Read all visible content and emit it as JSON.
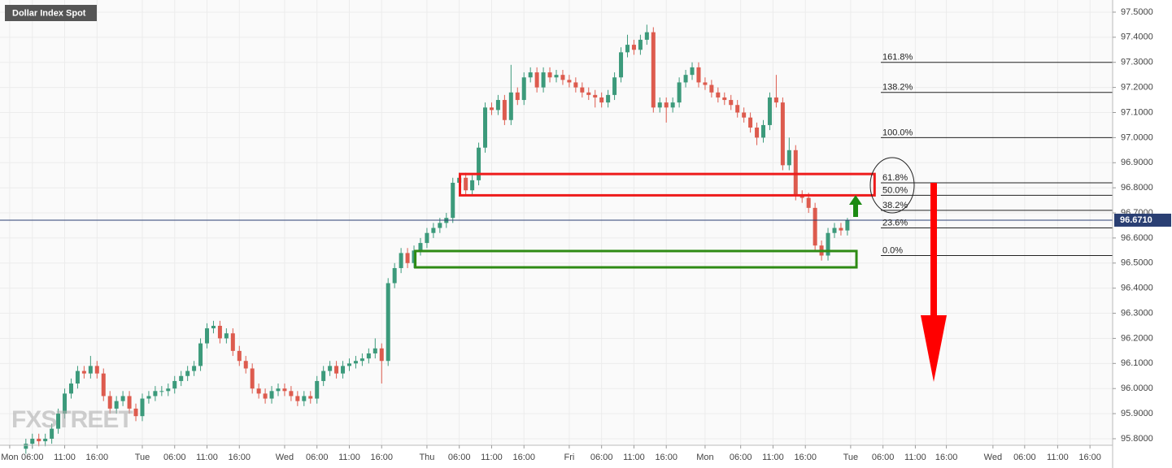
{
  "chart_data": {
    "type": "candlestick",
    "title": "Dollar Index Spot",
    "watermark": "FXSTREET",
    "bull_color": "#3c9a7b",
    "bear_color": "#dd5b4e",
    "grid": true,
    "xlim": [
      0,
      172
    ],
    "ylim": [
      95.774,
      97.529
    ],
    "yticks": [
      {
        "value": 95.8,
        "label": "95.8000"
      },
      {
        "value": 95.9,
        "label": "95.9000"
      },
      {
        "value": 96.0,
        "label": "96.0000"
      },
      {
        "value": 96.1,
        "label": "96.1000"
      },
      {
        "value": 96.2,
        "label": "96.2000"
      },
      {
        "value": 96.3,
        "label": "96.3000"
      },
      {
        "value": 96.4,
        "label": "96.4000"
      },
      {
        "value": 96.5,
        "label": "96.5000"
      },
      {
        "value": 96.6,
        "label": "96.6000"
      },
      {
        "value": 96.7,
        "label": "96.7000"
      },
      {
        "value": 96.8,
        "label": "96.8000"
      },
      {
        "value": 96.9,
        "label": "96.9000"
      },
      {
        "value": 97.0,
        "label": "97.0000"
      },
      {
        "value": 97.1,
        "label": "97.1000"
      },
      {
        "value": 97.2,
        "label": "97.2000"
      },
      {
        "value": 97.3,
        "label": "97.3000"
      },
      {
        "value": 97.4,
        "label": "97.4000"
      },
      {
        "value": 97.5,
        "label": "97.5000"
      }
    ],
    "xticks": [
      {
        "value": 1.5,
        "label": "Mon"
      },
      {
        "value": 5,
        "label": "06:00"
      },
      {
        "value": 10,
        "label": "11:00"
      },
      {
        "value": 15,
        "label": "16:00"
      },
      {
        "value": 22,
        "label": "Tue"
      },
      {
        "value": 27,
        "label": "06:00"
      },
      {
        "value": 32,
        "label": "11:00"
      },
      {
        "value": 37,
        "label": "16:00"
      },
      {
        "value": 44,
        "label": "Wed"
      },
      {
        "value": 49,
        "label": "06:00"
      },
      {
        "value": 54,
        "label": "11:00"
      },
      {
        "value": 59,
        "label": "16:00"
      },
      {
        "value": 66,
        "label": "Thu"
      },
      {
        "value": 71,
        "label": "06:00"
      },
      {
        "value": 76,
        "label": "11:00"
      },
      {
        "value": 81,
        "label": "16:00"
      },
      {
        "value": 88,
        "label": "Fri"
      },
      {
        "value": 93,
        "label": "06:00"
      },
      {
        "value": 98,
        "label": "11:00"
      },
      {
        "value": 103,
        "label": "16:00"
      },
      {
        "value": 109,
        "label": "Mon"
      },
      {
        "value": 114.5,
        "label": "06:00"
      },
      {
        "value": 119.5,
        "label": "11:00"
      },
      {
        "value": 124.5,
        "label": "16:00"
      },
      {
        "value": 131.5,
        "label": "Tue"
      },
      {
        "value": 136.5,
        "label": "06:00"
      },
      {
        "value": 141.5,
        "label": "11:00"
      },
      {
        "value": 146.3,
        "label": "16:00"
      },
      {
        "value": 153.5,
        "label": "Wed"
      },
      {
        "value": 158.4,
        "label": "06:00"
      },
      {
        "value": 163.5,
        "label": "11:00"
      },
      {
        "value": 168.5,
        "label": "16:00"
      }
    ],
    "x": [
      4,
      5,
      6,
      7,
      8,
      9,
      10,
      11,
      12,
      13,
      14,
      15,
      16,
      17,
      18,
      19,
      20,
      21,
      22,
      23,
      24,
      25,
      26,
      27,
      28,
      29,
      30,
      31,
      32,
      33,
      34,
      35,
      36,
      37,
      38,
      39,
      40,
      41,
      42,
      43,
      44,
      45,
      46,
      47,
      48,
      49,
      50,
      51,
      52,
      53,
      54,
      55,
      56,
      57,
      58,
      59,
      60,
      61,
      62,
      63,
      64,
      65,
      66,
      67,
      68,
      69,
      70,
      71,
      72,
      73,
      74,
      75,
      76,
      77,
      78,
      79,
      80,
      81,
      82,
      83,
      84,
      85,
      86,
      87,
      88,
      89,
      90,
      91,
      92,
      93,
      94,
      95,
      96,
      97,
      98,
      99,
      100,
      101,
      102,
      103,
      104,
      105,
      106,
      107,
      108,
      109,
      110,
      111,
      112,
      113,
      114,
      115,
      116,
      117,
      118,
      119,
      120,
      121,
      122,
      123,
      124,
      125,
      126,
      127,
      128,
      129,
      130,
      131
    ],
    "open": [
      95.76,
      95.78,
      95.8,
      95.79,
      95.8,
      95.84,
      95.9,
      95.98,
      96.02,
      96.07,
      96.06,
      96.09,
      96.06,
      95.97,
      95.92,
      95.95,
      95.97,
      95.92,
      95.89,
      95.96,
      95.97,
      95.99,
      95.99,
      96.0,
      96.03,
      96.05,
      96.07,
      96.09,
      96.18,
      96.24,
      96.25,
      96.2,
      96.22,
      96.15,
      96.11,
      96.08,
      96.0,
      95.98,
      95.96,
      95.99,
      96.0,
      95.99,
      95.97,
      95.95,
      95.97,
      95.96,
      96.03,
      96.07,
      96.09,
      96.06,
      96.09,
      96.1,
      96.11,
      96.12,
      96.14,
      96.16,
      96.11,
      96.42,
      96.48,
      96.54,
      96.5,
      96.55,
      96.58,
      96.62,
      96.64,
      96.66,
      96.68,
      96.82,
      96.84,
      96.79,
      96.83,
      96.96,
      97.12,
      97.11,
      97.15,
      97.07,
      97.18,
      97.15,
      97.24,
      97.26,
      97.2,
      97.26,
      97.24,
      97.25,
      97.23,
      97.22,
      97.2,
      97.18,
      97.17,
      97.16,
      97.14,
      97.17,
      97.24,
      97.34,
      97.37,
      97.35,
      97.39,
      97.42,
      97.12,
      97.14,
      97.12,
      97.14,
      97.22,
      97.25,
      97.28,
      97.22,
      97.21,
      97.18,
      97.16,
      97.15,
      97.13,
      97.1,
      97.08,
      97.04,
      97.0,
      97.05,
      97.16,
      97.14,
      96.89,
      96.95,
      96.77,
      96.76,
      96.72,
      96.57,
      96.53,
      96.62,
      96.64,
      96.63
    ],
    "high": [
      95.8,
      95.82,
      95.82,
      95.82,
      95.86,
      95.92,
      96.0,
      96.04,
      96.09,
      96.09,
      96.13,
      96.11,
      96.08,
      95.99,
      95.97,
      95.99,
      95.99,
      95.94,
      95.98,
      95.99,
      96.01,
      96.01,
      96.02,
      96.05,
      96.07,
      96.09,
      96.11,
      96.2,
      96.26,
      96.27,
      96.27,
      96.24,
      96.24,
      96.17,
      96.13,
      96.1,
      96.02,
      96.0,
      96.01,
      96.02,
      96.02,
      96.01,
      95.99,
      95.99,
      95.99,
      96.05,
      96.09,
      96.11,
      96.11,
      96.11,
      96.12,
      96.13,
      96.14,
      96.16,
      96.2,
      96.18,
      96.44,
      96.5,
      96.56,
      96.56,
      96.57,
      96.6,
      96.64,
      96.66,
      96.68,
      96.7,
      96.84,
      96.86,
      96.86,
      96.85,
      96.98,
      97.14,
      97.14,
      97.17,
      97.17,
      97.29,
      97.2,
      97.26,
      97.28,
      97.28,
      97.28,
      97.28,
      97.27,
      97.27,
      97.25,
      97.24,
      97.22,
      97.2,
      97.19,
      97.18,
      97.19,
      97.26,
      97.36,
      97.41,
      97.39,
      97.41,
      97.45,
      97.44,
      97.16,
      97.16,
      97.16,
      97.24,
      97.27,
      97.3,
      97.3,
      97.24,
      97.23,
      97.2,
      97.18,
      97.17,
      97.15,
      97.12,
      97.1,
      97.06,
      97.07,
      97.18,
      97.25,
      97.16,
      97.0,
      96.97,
      96.79,
      96.78,
      96.74,
      96.59,
      96.64,
      96.66,
      96.66,
      96.68
    ],
    "low": [
      95.74,
      95.76,
      95.77,
      95.77,
      95.78,
      95.82,
      95.88,
      95.96,
      96.0,
      96.04,
      96.04,
      96.04,
      95.95,
      95.9,
      95.9,
      95.93,
      95.9,
      95.87,
      95.87,
      95.94,
      95.95,
      95.97,
      95.97,
      95.98,
      96.01,
      96.03,
      96.05,
      96.07,
      96.16,
      96.22,
      96.18,
      96.18,
      96.13,
      96.09,
      96.06,
      95.98,
      95.96,
      95.94,
      95.94,
      95.97,
      95.97,
      95.95,
      95.93,
      95.93,
      95.94,
      95.94,
      96.01,
      96.05,
      96.04,
      96.04,
      96.07,
      96.08,
      96.09,
      96.1,
      96.12,
      96.02,
      96.09,
      96.4,
      96.46,
      96.48,
      96.48,
      96.53,
      96.56,
      96.6,
      96.62,
      96.64,
      96.66,
      96.77,
      96.77,
      96.77,
      96.81,
      96.94,
      97.09,
      97.09,
      97.05,
      97.05,
      97.13,
      97.13,
      97.22,
      97.18,
      97.18,
      97.22,
      97.22,
      97.21,
      97.2,
      97.18,
      97.16,
      97.15,
      97.12,
      97.12,
      97.12,
      97.15,
      97.22,
      97.32,
      97.33,
      97.33,
      97.37,
      97.1,
      97.1,
      97.06,
      97.1,
      97.12,
      97.2,
      97.23,
      97.2,
      97.19,
      97.16,
      97.14,
      97.13,
      97.11,
      97.08,
      97.06,
      97.02,
      96.97,
      96.98,
      97.03,
      97.12,
      96.87,
      96.87,
      96.75,
      96.74,
      96.7,
      96.55,
      96.51,
      96.51,
      96.6,
      96.61,
      96.61
    ],
    "close": [
      95.78,
      95.8,
      95.79,
      95.8,
      95.84,
      95.9,
      95.98,
      96.02,
      96.07,
      96.06,
      96.09,
      96.06,
      95.97,
      95.92,
      95.95,
      95.97,
      95.92,
      95.89,
      95.96,
      95.97,
      95.99,
      95.99,
      96.0,
      96.03,
      96.05,
      96.07,
      96.09,
      96.18,
      96.24,
      96.25,
      96.2,
      96.22,
      96.15,
      96.11,
      96.08,
      96.0,
      95.98,
      95.96,
      95.99,
      96.0,
      95.99,
      95.97,
      95.95,
      95.97,
      95.96,
      96.03,
      96.07,
      96.09,
      96.06,
      96.09,
      96.1,
      96.11,
      96.12,
      96.14,
      96.16,
      96.11,
      96.42,
      96.48,
      96.54,
      96.5,
      96.55,
      96.58,
      96.62,
      96.64,
      96.66,
      96.68,
      96.82,
      96.84,
      96.79,
      96.83,
      96.96,
      97.12,
      97.11,
      97.15,
      97.07,
      97.18,
      97.15,
      97.24,
      97.26,
      97.2,
      97.26,
      97.24,
      97.25,
      97.23,
      97.22,
      97.2,
      97.18,
      97.17,
      97.16,
      97.14,
      97.17,
      97.24,
      97.34,
      97.37,
      97.35,
      97.39,
      97.42,
      97.12,
      97.14,
      97.12,
      97.14,
      97.22,
      97.25,
      97.28,
      97.22,
      97.21,
      97.18,
      97.16,
      97.15,
      97.13,
      97.1,
      97.08,
      97.04,
      97.0,
      97.05,
      97.16,
      97.14,
      96.89,
      96.95,
      96.77,
      96.76,
      96.72,
      96.57,
      96.53,
      96.62,
      96.64,
      96.63,
      96.67
    ],
    "last_price": {
      "value": 96.671,
      "label": "96.6710"
    },
    "fib_levels": [
      {
        "label": "161.8%",
        "price": 97.3
      },
      {
        "label": "138.2%",
        "price": 97.18
      },
      {
        "label": "100.0%",
        "price": 97.0
      },
      {
        "label": "61.8%",
        "price": 96.82
      },
      {
        "label": "50.0%",
        "price": 96.77
      },
      {
        "label": "38.2%",
        "price": 96.71
      },
      {
        "label": "23.6%",
        "price": 96.64
      },
      {
        "label": "0.0%",
        "price": 96.53
      }
    ],
    "zones": [
      {
        "color": "#ee1c1c",
        "x0": 71.1,
        "x1": 135.2,
        "top": 96.855,
        "bottom": 96.77
      },
      {
        "color": "#2e8b14",
        "x0": 64.2,
        "x1": 132.4,
        "top": 96.548,
        "bottom": 96.483
      }
    ]
  }
}
